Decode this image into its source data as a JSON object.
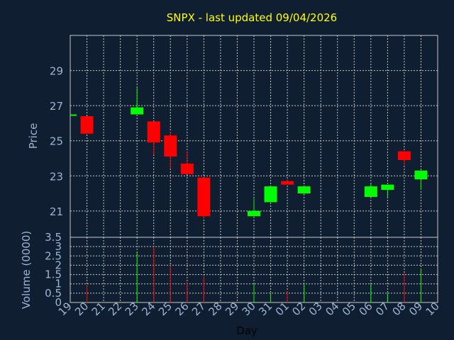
{
  "chart_data": [
    {
      "type": "candlestick",
      "title": "SNPX - last updated 09/04/2026",
      "ylabel": "Price",
      "xlabel": "Day",
      "ylim": [
        19.5,
        31
      ],
      "yticks": [
        21,
        23,
        25,
        27,
        29
      ],
      "categories": [
        "19",
        "20",
        "21",
        "22",
        "23",
        "24",
        "25",
        "26",
        "27",
        "28",
        "29",
        "30",
        "31",
        "01",
        "02",
        "03",
        "04",
        "05",
        "06",
        "07",
        "08",
        "09",
        "10"
      ],
      "candles": [
        {
          "day": "19",
          "open": 26.5,
          "close": 26.5,
          "high": 26.5,
          "low": 26.5
        },
        {
          "day": "20",
          "open": 26.4,
          "close": 25.4,
          "high": 26.4,
          "low": 25.4
        },
        {
          "day": "23",
          "open": 26.5,
          "close": 26.9,
          "high": 28.0,
          "low": 26.5
        },
        {
          "day": "24",
          "open": 26.1,
          "close": 24.9,
          "high": 26.1,
          "low": 24.2
        },
        {
          "day": "25",
          "open": 25.3,
          "close": 24.1,
          "high": 25.5,
          "low": 23.4
        },
        {
          "day": "26",
          "open": 23.7,
          "close": 23.1,
          "high": 24.4,
          "low": 23.1
        },
        {
          "day": "27",
          "open": 22.9,
          "close": 20.7,
          "high": 22.9,
          "low": 20.6
        },
        {
          "day": "30",
          "open": 20.7,
          "close": 21.0,
          "high": 21.7,
          "low": 20.7
        },
        {
          "day": "31",
          "open": 21.5,
          "close": 22.4,
          "high": 22.4,
          "low": 21.5
        },
        {
          "day": "01",
          "open": 22.7,
          "close": 22.5,
          "high": 22.8,
          "low": 22.5
        },
        {
          "day": "02",
          "open": 22.0,
          "close": 22.4,
          "high": 22.4,
          "low": 21.9
        },
        {
          "day": "06",
          "open": 21.8,
          "close": 22.4,
          "high": 22.6,
          "low": 21.8
        },
        {
          "day": "07",
          "open": 22.2,
          "close": 22.5,
          "high": 22.5,
          "low": 21.8
        },
        {
          "day": "08",
          "open": 24.4,
          "close": 23.9,
          "high": 24.4,
          "low": 23.6
        },
        {
          "day": "09",
          "open": 22.8,
          "close": 23.3,
          "high": 23.3,
          "low": 22.2
        }
      ],
      "colors": {
        "up": "#00ff00",
        "down": "#ff0000",
        "grid": "#c8c8c8",
        "axis_text": "#a0b4d2",
        "title": "#ffff00",
        "panel_bg": "#0f1e30"
      }
    },
    {
      "type": "bar",
      "ylabel": "Volume (0000)",
      "ylim": [
        0,
        3.5
      ],
      "yticks": [
        0,
        0.5,
        1,
        1.5,
        2,
        2.5,
        3,
        3.5
      ],
      "categories": [
        "19",
        "20",
        "21",
        "22",
        "23",
        "24",
        "25",
        "26",
        "27",
        "28",
        "29",
        "30",
        "31",
        "01",
        "02",
        "03",
        "04",
        "05",
        "06",
        "07",
        "08",
        "09",
        "10"
      ],
      "bars": [
        {
          "day": "20",
          "value": 0.9,
          "direction": "down"
        },
        {
          "day": "23",
          "value": 2.7,
          "direction": "up"
        },
        {
          "day": "24",
          "value": 3.0,
          "direction": "down"
        },
        {
          "day": "25",
          "value": 2.0,
          "direction": "down"
        },
        {
          "day": "26",
          "value": 1.1,
          "direction": "down"
        },
        {
          "day": "27",
          "value": 1.4,
          "direction": "down"
        },
        {
          "day": "30",
          "value": 1.0,
          "direction": "up"
        },
        {
          "day": "31",
          "value": 0.5,
          "direction": "up"
        },
        {
          "day": "01",
          "value": 0.6,
          "direction": "down"
        },
        {
          "day": "02",
          "value": 1.0,
          "direction": "up"
        },
        {
          "day": "06",
          "value": 1.0,
          "direction": "up"
        },
        {
          "day": "07",
          "value": 0.5,
          "direction": "up"
        },
        {
          "day": "08",
          "value": 1.6,
          "direction": "down"
        },
        {
          "day": "09",
          "value": 1.8,
          "direction": "up"
        }
      ]
    }
  ]
}
